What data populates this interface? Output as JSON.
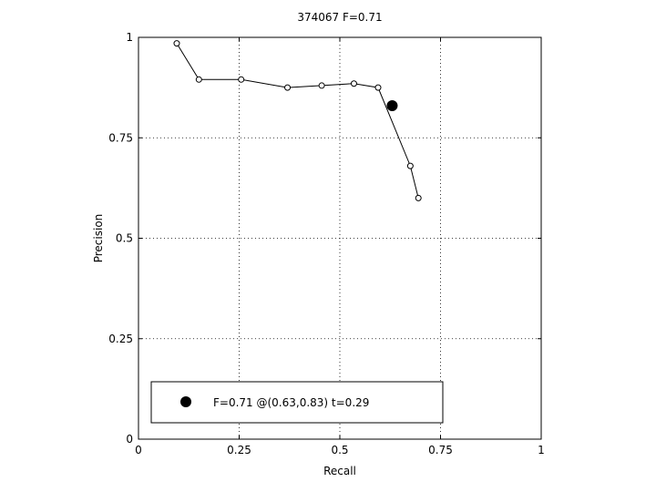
{
  "chart_data": {
    "type": "line",
    "title": "374067 F=0.71",
    "xlabel": "Recall",
    "ylabel": "Precision",
    "xlim": [
      0,
      1
    ],
    "ylim": [
      0,
      1
    ],
    "xticks": [
      0,
      0.25,
      0.5,
      0.75,
      1
    ],
    "yticks": [
      0,
      0.25,
      0.5,
      0.75,
      1
    ],
    "xtick_labels": [
      "0",
      "0.25",
      "0.5",
      "0.75",
      "1"
    ],
    "ytick_labels": [
      "0",
      "0.25",
      "0.5",
      "0.75",
      "1"
    ],
    "grid": true,
    "legend_position": "bottom-left",
    "series": [
      {
        "marker": "open-circle",
        "color": "#000000",
        "x": [
          0.095,
          0.15,
          0.255,
          0.37,
          0.455,
          0.535,
          0.595,
          0.675,
          0.695
        ],
        "y": [
          0.985,
          0.895,
          0.895,
          0.875,
          0.88,
          0.885,
          0.875,
          0.68,
          0.6
        ]
      }
    ],
    "highlight_point": {
      "x": 0.63,
      "y": 0.83,
      "marker": "filled-circle",
      "color": "#000000"
    },
    "legend": {
      "label": "F=0.71 @(0.63,0.83) t=0.29"
    }
  }
}
